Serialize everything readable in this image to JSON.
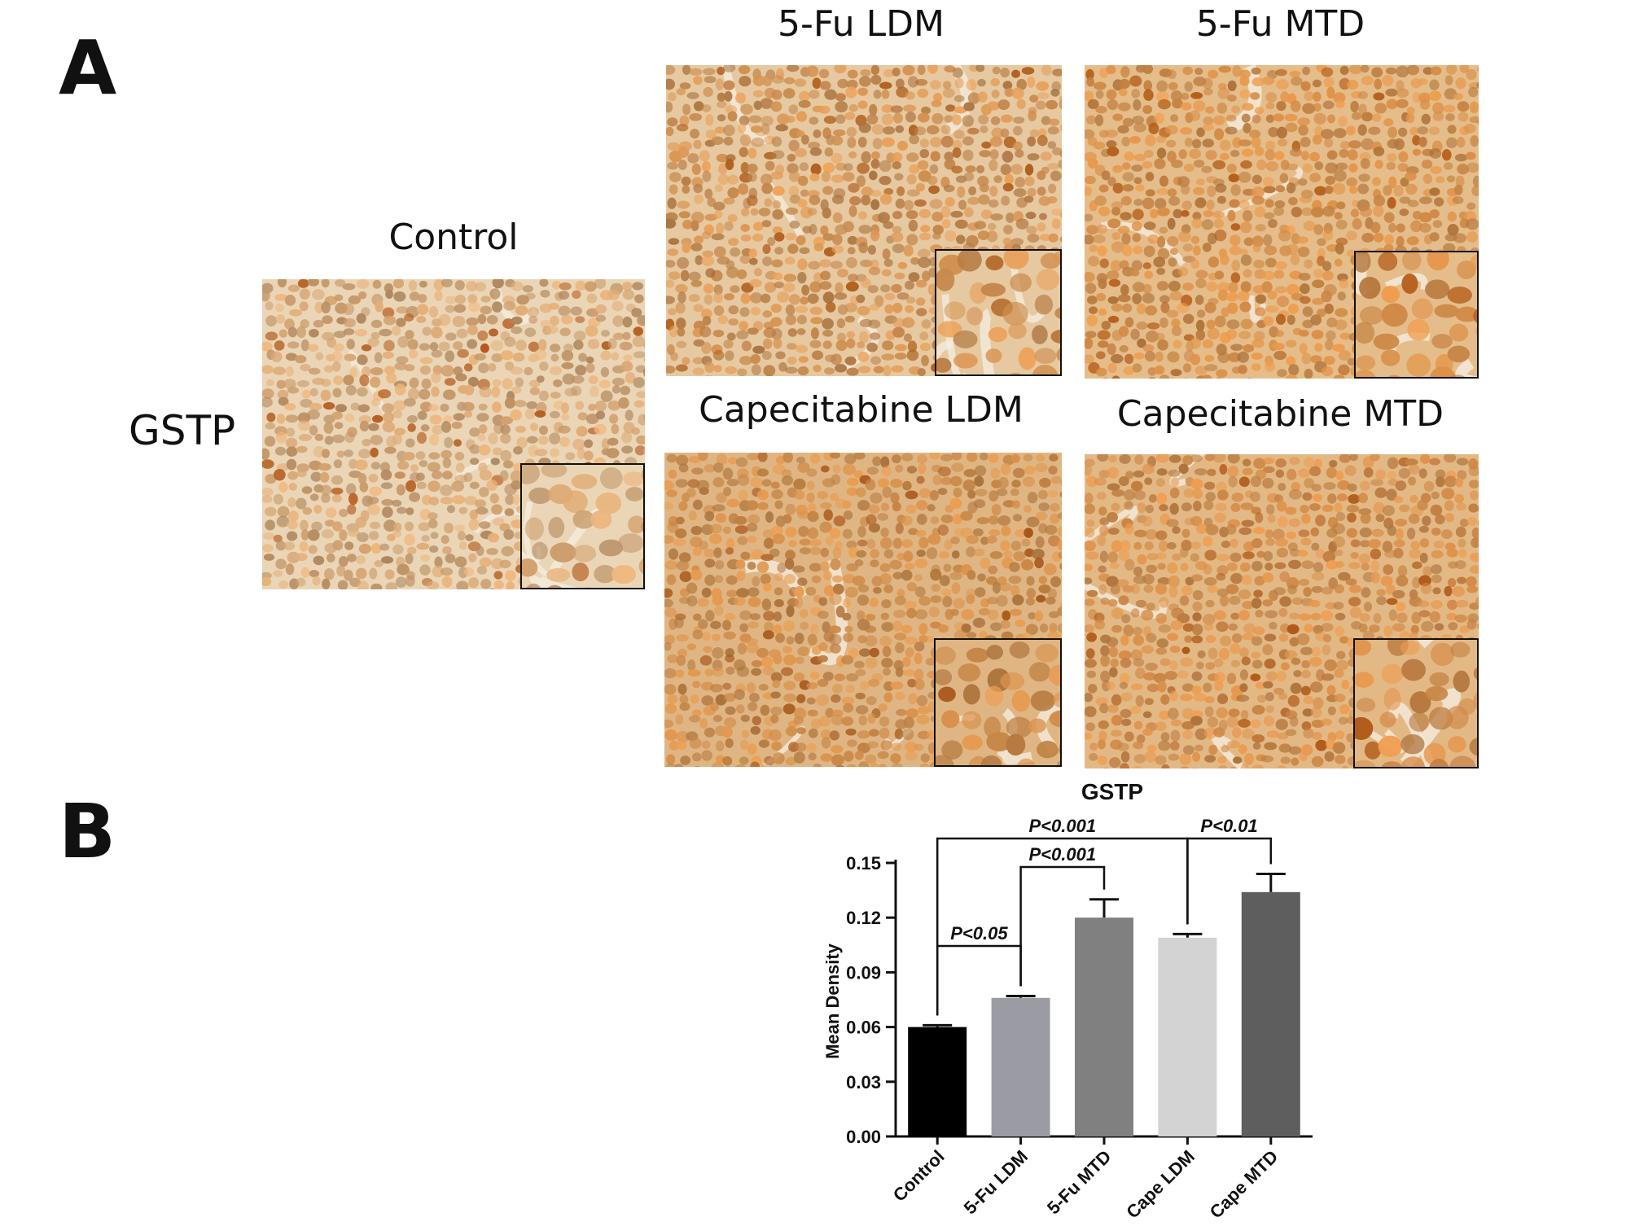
{
  "panel_a": {
    "letter": "A",
    "row_label": "GSTP",
    "images": [
      {
        "label": "Control",
        "stain": "#c99a6a",
        "bg": "#ead6b6",
        "dark": "#b35a1c"
      },
      {
        "label": "5-Fu LDM",
        "stain": "#c7894d",
        "bg": "#e6c9a0",
        "dark": "#b0611f"
      },
      {
        "label": "5-Fu MTD",
        "stain": "#c98442",
        "bg": "#e4bd8a",
        "dark": "#b55e1a"
      },
      {
        "label": "Capecitabine LDM",
        "stain": "#c68545",
        "bg": "#dfb683",
        "dark": "#a9581b"
      },
      {
        "label": "Capecitabine MTD",
        "stain": "#c98444",
        "bg": "#e2b985",
        "dark": "#b05a18"
      }
    ]
  },
  "panel_b": {
    "letter": "B"
  },
  "chart_data": {
    "type": "bar",
    "title": "GSTP",
    "ylabel": "Mean Density",
    "xlabel": "",
    "ylim": [
      0,
      0.15
    ],
    "yticks": [
      "0.00",
      "0.03",
      "0.06",
      "0.09",
      "0.12",
      "0.15"
    ],
    "categories": [
      "Control",
      "5-Fu LDM",
      "5-Fu MTD",
      "Cape LDM",
      "Cape MTD"
    ],
    "values": [
      0.06,
      0.076,
      0.12,
      0.109,
      0.134
    ],
    "errors": [
      0.001,
      0.001,
      0.01,
      0.002,
      0.01
    ],
    "colors": [
      "#000000",
      "#9b9ba3",
      "#808080",
      "#d3d3d3",
      "#5e5e5e"
    ],
    "comparisons": [
      {
        "from": 0,
        "to": 1,
        "label": "P<0.05"
      },
      {
        "from": 1,
        "to": 2,
        "label": "P<0.001"
      },
      {
        "from": 0,
        "to": 3,
        "label": "P<0.001"
      },
      {
        "from": 3,
        "to": 4,
        "label": "P<0.01"
      }
    ]
  }
}
